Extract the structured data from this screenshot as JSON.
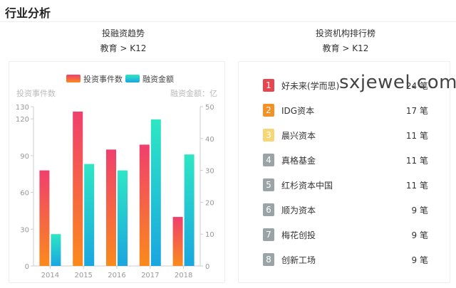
{
  "page": {
    "title": "行业分析"
  },
  "left_section": {
    "title": "投融资趋势",
    "subtitle": "教育 > K12"
  },
  "right_section": {
    "title": "投资机构排行榜",
    "subtitle": "教育 > K12"
  },
  "watermark": "sxjewel.com",
  "ranking": [
    {
      "rank": "1",
      "name": "好未来(学而思)",
      "count": "24 笔",
      "color": "#e8464e"
    },
    {
      "rank": "2",
      "name": "IDG资本",
      "count": "17 笔",
      "color": "#f39125"
    },
    {
      "rank": "3",
      "name": "晨兴资本",
      "count": "11 笔",
      "color": "#f7d675"
    },
    {
      "rank": "4",
      "name": "真格基金",
      "count": "11 笔",
      "color": "#9aa3a6"
    },
    {
      "rank": "5",
      "name": "红杉资本中国",
      "count": "11 笔",
      "color": "#9aa3a6"
    },
    {
      "rank": "6",
      "name": "顺为资本",
      "count": "9 笔",
      "color": "#9aa3a6"
    },
    {
      "rank": "7",
      "name": "梅花创投",
      "count": "9 笔",
      "color": "#9aa3a6"
    },
    {
      "rank": "8",
      "name": "创新工场",
      "count": "9 笔",
      "color": "#9aa3a6"
    }
  ],
  "chart_data": {
    "type": "bar",
    "categories": [
      "2014",
      "2015",
      "2016",
      "2017",
      "2018"
    ],
    "series": [
      {
        "name": "投资事件数",
        "values": [
          78,
          126,
          95,
          99,
          40
        ],
        "axis": "left",
        "color_top": "#f03f6e",
        "color_bottom": "#fa8a1c"
      },
      {
        "name": "融资金额",
        "values": [
          10,
          32,
          30,
          46,
          35
        ],
        "axis": "right",
        "color_top": "#2ee6c4",
        "color_bottom": "#1aa6e0"
      }
    ],
    "ylabel_left": "投资事件数",
    "ylabel_right": "融资金额：亿",
    "ylim_left": [
      0,
      130
    ],
    "yticks_left": [
      0,
      30,
      60,
      90,
      120,
      130
    ],
    "ylim_right": [
      0,
      50
    ],
    "yticks_right": [
      0,
      10,
      20,
      30,
      40,
      50
    ],
    "legend": "top-center",
    "grid": false
  }
}
